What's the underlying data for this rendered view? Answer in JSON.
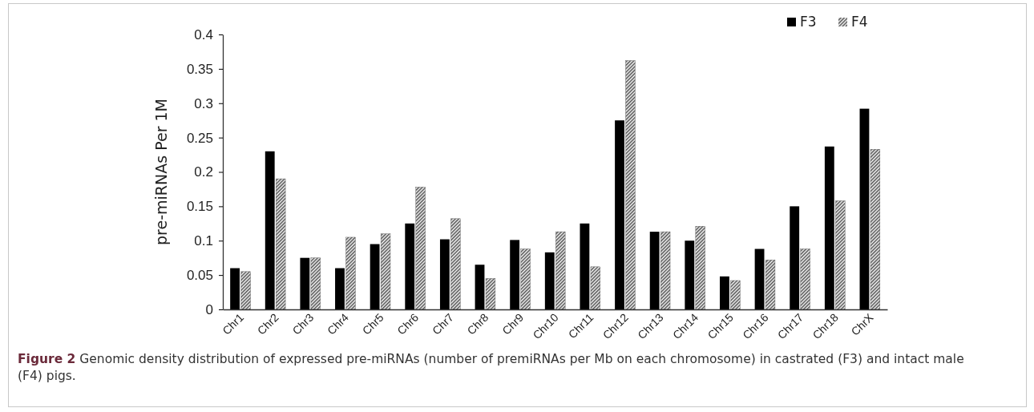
{
  "chart_data": {
    "type": "bar",
    "ylabel": "pre-miRNAs Per 1M",
    "categories": [
      "Chr1",
      "Chr2",
      "Chr3",
      "Chr4",
      "Chr5",
      "Chr6",
      "Chr7",
      "Chr8",
      "Chr9",
      "Chr10",
      "Chr11",
      "Chr12",
      "Chr13",
      "Chr14",
      "Chr15",
      "Chr16",
      "Chr17",
      "Chr18",
      "ChrX"
    ],
    "series": [
      {
        "name": "F3",
        "color": "#000000",
        "values": [
          0.06,
          0.23,
          0.075,
          0.06,
          0.095,
          0.125,
          0.102,
          0.065,
          0.101,
          0.083,
          0.125,
          0.275,
          0.113,
          0.1,
          0.048,
          0.088,
          0.15,
          0.237,
          0.292
        ]
      },
      {
        "name": "F4",
        "color": "#555555",
        "values": [
          0.055,
          0.19,
          0.075,
          0.105,
          0.11,
          0.178,
          0.132,
          0.045,
          0.088,
          0.113,
          0.062,
          0.362,
          0.113,
          0.121,
          0.042,
          0.072,
          0.088,
          0.158,
          0.233
        ]
      }
    ],
    "ylim": [
      0,
      0.4
    ],
    "yticks": [
      0,
      0.05,
      0.1,
      0.15,
      0.2,
      0.25,
      0.3,
      0.35,
      0.4
    ],
    "grid": false,
    "legend": "top right",
    "annotations": [
      "Figure 2",
      "Genomic density distribution of expressed pre-miRNAs (number of premiRNAs per Mb on each chromosome) in castrated (F3) and intact male (F4) pigs."
    ]
  }
}
